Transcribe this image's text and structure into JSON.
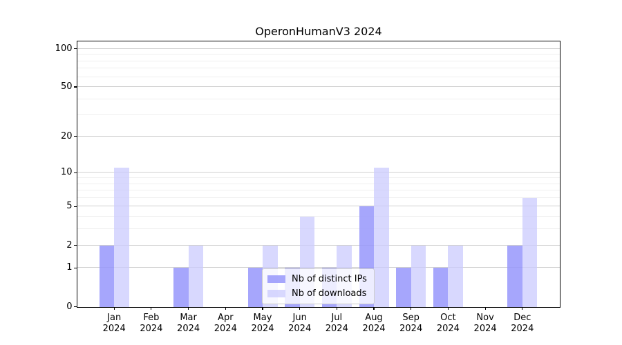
{
  "chart_data": {
    "type": "bar",
    "title": "OperonHumanV3 2024",
    "xlabel": "",
    "ylabel": "",
    "x_tick_year": "2024",
    "categories": [
      "Jan",
      "Feb",
      "Mar",
      "Apr",
      "May",
      "Jun",
      "Jul",
      "Aug",
      "Sep",
      "Oct",
      "Nov",
      "Dec"
    ],
    "series": [
      {
        "name": "Nb of distinct IPs",
        "color": "rgba(150,150,252,0.85)",
        "values": [
          2,
          0,
          1,
          0,
          1,
          1,
          1,
          5,
          1,
          1,
          0,
          2
        ]
      },
      {
        "name": "Nb of downloads",
        "color": "rgba(203,203,253,0.75)",
        "values": [
          11,
          0,
          2,
          0,
          2,
          4,
          2,
          11,
          2,
          2,
          0,
          6
        ]
      }
    ],
    "yscale": "log1p",
    "ylim": [
      0,
      115
    ],
    "y_major_ticks": [
      0,
      1,
      2,
      5,
      10,
      20,
      50,
      100
    ],
    "y_minor_ticks": [
      3,
      4,
      6,
      7,
      8,
      9,
      30,
      40,
      60,
      70,
      80,
      90
    ],
    "grid": "both",
    "legend_position": "lower center"
  },
  "colors": {
    "grid_major": "#cfcfcf",
    "grid_minor": "#efefef",
    "spine": "#000000",
    "legend_border": "#cccccc"
  }
}
